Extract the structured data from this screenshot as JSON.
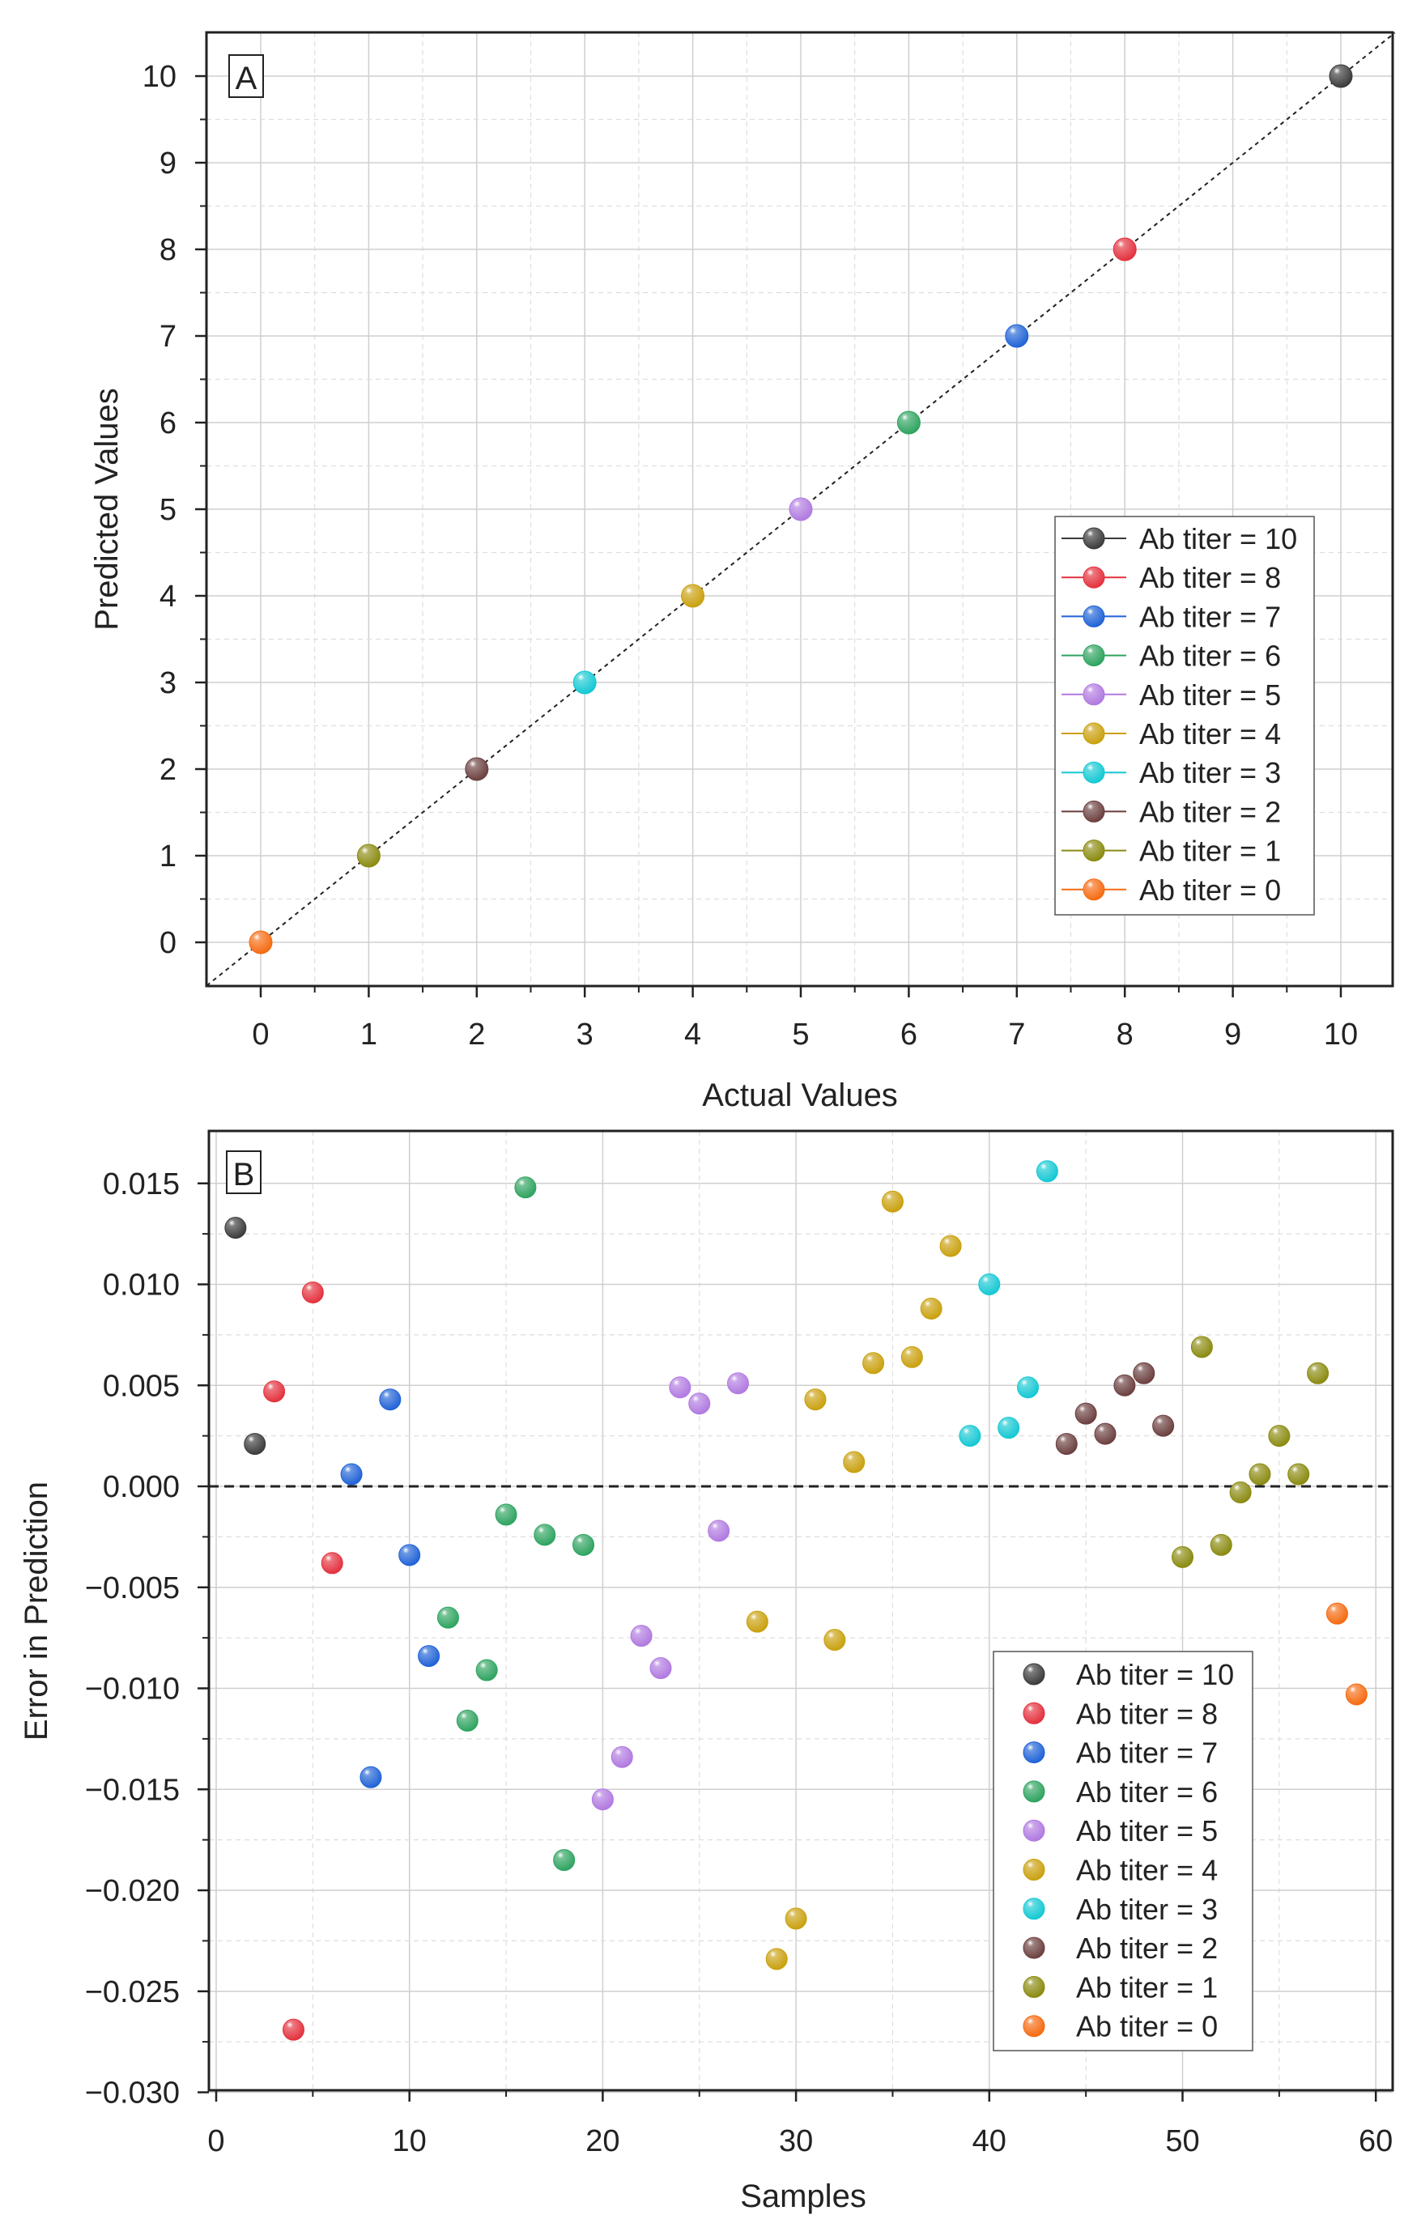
{
  "colors": {
    "ab10": "#3a3a3a",
    "ab8": "#e3303c",
    "ab7": "#1f62d6",
    "ab6": "#2da35f",
    "ab5": "#b079e0",
    "ab4": "#c9a00d",
    "ab3": "#13c8d3",
    "ab2": "#6b3e3e",
    "ab1": "#8a8a10",
    "ab0": "#f56a10"
  },
  "chart_data": [
    {
      "type": "scatter",
      "panel_label": "A",
      "xlabel": "Actual Values",
      "ylabel": "Predicted Values",
      "xlim": [
        -0.5,
        10.5
      ],
      "ylim": [
        -0.5,
        10.5
      ],
      "xticks": [
        "0",
        "1",
        "2",
        "3",
        "4",
        "5",
        "6",
        "7",
        "8",
        "9",
        "10"
      ],
      "yticks": [
        "0",
        "1",
        "2",
        "3",
        "4",
        "5",
        "6",
        "7",
        "8",
        "9",
        "10"
      ],
      "grid": true,
      "reference_line": "y = x (dashed)",
      "legend_position": "right-middle",
      "series": [
        {
          "name": "Ab titer = 10",
          "color_key": "ab10",
          "points": [
            [
              10,
              10
            ]
          ]
        },
        {
          "name": "Ab titer = 8",
          "color_key": "ab8",
          "points": [
            [
              8,
              8
            ]
          ]
        },
        {
          "name": "Ab titer = 7",
          "color_key": "ab7",
          "points": [
            [
              7,
              7
            ]
          ]
        },
        {
          "name": "Ab titer = 6",
          "color_key": "ab6",
          "points": [
            [
              6,
              6
            ]
          ]
        },
        {
          "name": "Ab titer = 5",
          "color_key": "ab5",
          "points": [
            [
              5,
              5
            ]
          ]
        },
        {
          "name": "Ab titer = 4",
          "color_key": "ab4",
          "points": [
            [
              4,
              4
            ]
          ]
        },
        {
          "name": "Ab titer = 3",
          "color_key": "ab3",
          "points": [
            [
              3,
              3
            ]
          ]
        },
        {
          "name": "Ab titer = 2",
          "color_key": "ab2",
          "points": [
            [
              2,
              2
            ]
          ]
        },
        {
          "name": "Ab titer = 1",
          "color_key": "ab1",
          "points": [
            [
              1,
              1
            ]
          ]
        },
        {
          "name": "Ab titer = 0",
          "color_key": "ab0",
          "points": [
            [
              0,
              0
            ]
          ]
        }
      ]
    },
    {
      "type": "scatter",
      "panel_label": "B",
      "xlabel": "Samples",
      "ylabel": "Error in Prediction",
      "xlim": [
        -0.5,
        61
      ],
      "ylim": [
        -0.03,
        0.0175
      ],
      "xticks": [
        "0",
        "10",
        "20",
        "30",
        "40",
        "50",
        "60"
      ],
      "yticks": [
        "0.015",
        "0.010",
        "0.005",
        "0.000",
        "−0.005",
        "−0.010",
        "−0.015",
        "−0.020",
        "−0.025",
        "−0.030"
      ],
      "grid": true,
      "reference_line": "y = 0 (dashed)",
      "legend_position": "bottom-right",
      "series": [
        {
          "name": "Ab titer = 10",
          "color_key": "ab10",
          "points": [
            [
              1,
              0.0128
            ],
            [
              2,
              0.0021
            ]
          ]
        },
        {
          "name": "Ab titer = 8",
          "color_key": "ab8",
          "points": [
            [
              3,
              0.0047
            ],
            [
              4,
              -0.0269
            ],
            [
              5,
              0.0096
            ],
            [
              6,
              -0.0038
            ]
          ]
        },
        {
          "name": "Ab titer = 7",
          "color_key": "ab7",
          "points": [
            [
              7,
              0.0006
            ],
            [
              8,
              -0.0144
            ],
            [
              9,
              0.0043
            ],
            [
              10,
              -0.0034
            ],
            [
              11,
              -0.0084
            ]
          ]
        },
        {
          "name": "Ab titer = 6",
          "color_key": "ab6",
          "points": [
            [
              12,
              -0.0065
            ],
            [
              13,
              -0.0116
            ],
            [
              14,
              -0.0091
            ],
            [
              15,
              -0.0014
            ],
            [
              16,
              0.0148
            ],
            [
              17,
              -0.0024
            ],
            [
              18,
              -0.0185
            ],
            [
              19,
              -0.0029
            ]
          ]
        },
        {
          "name": "Ab titer = 5",
          "color_key": "ab5",
          "points": [
            [
              20,
              -0.0155
            ],
            [
              21,
              -0.0134
            ],
            [
              22,
              -0.0074
            ],
            [
              23,
              -0.009
            ],
            [
              24,
              0.0049
            ],
            [
              25,
              0.0041
            ],
            [
              26,
              -0.0022
            ],
            [
              27,
              0.0051
            ]
          ]
        },
        {
          "name": "Ab titer = 4",
          "color_key": "ab4",
          "points": [
            [
              28,
              -0.0067
            ],
            [
              29,
              -0.0234
            ],
            [
              30,
              -0.0214
            ],
            [
              31,
              0.0043
            ],
            [
              32,
              -0.0076
            ],
            [
              33,
              0.0012
            ],
            [
              34,
              0.0061
            ],
            [
              35,
              0.0141
            ],
            [
              36,
              0.0064
            ],
            [
              37,
              0.0088
            ],
            [
              38,
              0.0119
            ]
          ]
        },
        {
          "name": "Ab titer = 3",
          "color_key": "ab3",
          "points": [
            [
              39,
              0.0025
            ],
            [
              40,
              0.01
            ],
            [
              41,
              0.0029
            ],
            [
              42,
              0.0049
            ],
            [
              43,
              0.0156
            ]
          ]
        },
        {
          "name": "Ab titer = 2",
          "color_key": "ab2",
          "points": [
            [
              44,
              0.0021
            ],
            [
              45,
              0.0036
            ],
            [
              46,
              0.0026
            ],
            [
              47,
              0.005
            ],
            [
              48,
              0.0056
            ],
            [
              49,
              0.003
            ]
          ]
        },
        {
          "name": "Ab titer = 1",
          "color_key": "ab1",
          "points": [
            [
              50,
              -0.0035
            ],
            [
              51,
              0.0069
            ],
            [
              52,
              -0.0029
            ],
            [
              53,
              -0.0003
            ],
            [
              54,
              0.0006
            ],
            [
              55,
              0.0025
            ],
            [
              56,
              0.0006
            ],
            [
              57,
              0.0056
            ]
          ]
        },
        {
          "name": "Ab titer = 0",
          "color_key": "ab0",
          "points": [
            [
              58,
              -0.0063
            ],
            [
              59,
              -0.0103
            ]
          ]
        }
      ]
    }
  ]
}
